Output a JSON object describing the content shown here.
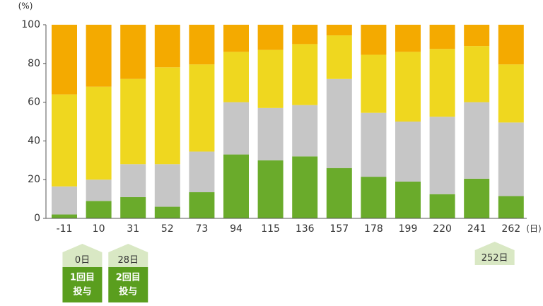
{
  "chart_data": {
    "type": "stacked_bar",
    "y_unit": "(%)",
    "x_unit": "(日)",
    "categories": [
      "-11",
      "10",
      "31",
      "52",
      "73",
      "94",
      "115",
      "136",
      "157",
      "178",
      "199",
      "220",
      "241",
      "262"
    ],
    "series": [
      {
        "color": "#6aab2b",
        "values": [
          2,
          9,
          11,
          6,
          13.5,
          33,
          30,
          32,
          26,
          21.5,
          19,
          12.5,
          20.5,
          11.5
        ]
      },
      {
        "color": "#c6c6c6",
        "values": [
          14.5,
          11,
          17,
          22,
          21,
          27,
          27,
          26.5,
          46,
          33,
          31,
          40,
          39.5,
          38
        ]
      },
      {
        "color": "#efd71f",
        "values": [
          47.5,
          48,
          44,
          50,
          45,
          26,
          30,
          31.5,
          22.5,
          30,
          36,
          35,
          29,
          30
        ]
      },
      {
        "color": "#f4aa00",
        "values": [
          36,
          32,
          28,
          22,
          20.5,
          14,
          13,
          10,
          5.5,
          15.5,
          14,
          12.5,
          11,
          20.5
        ]
      }
    ],
    "ylim": [
      0,
      100
    ],
    "yticks": [
      0,
      20,
      40,
      60,
      80,
      100
    ],
    "annotations": [
      {
        "day": 0,
        "label": "0日",
        "text": [
          "1回目",
          "投与"
        ]
      },
      {
        "day": 28,
        "label": "28日",
        "text": [
          "2回目",
          "投与"
        ]
      },
      {
        "day": 252,
        "label": "252日"
      }
    ]
  }
}
